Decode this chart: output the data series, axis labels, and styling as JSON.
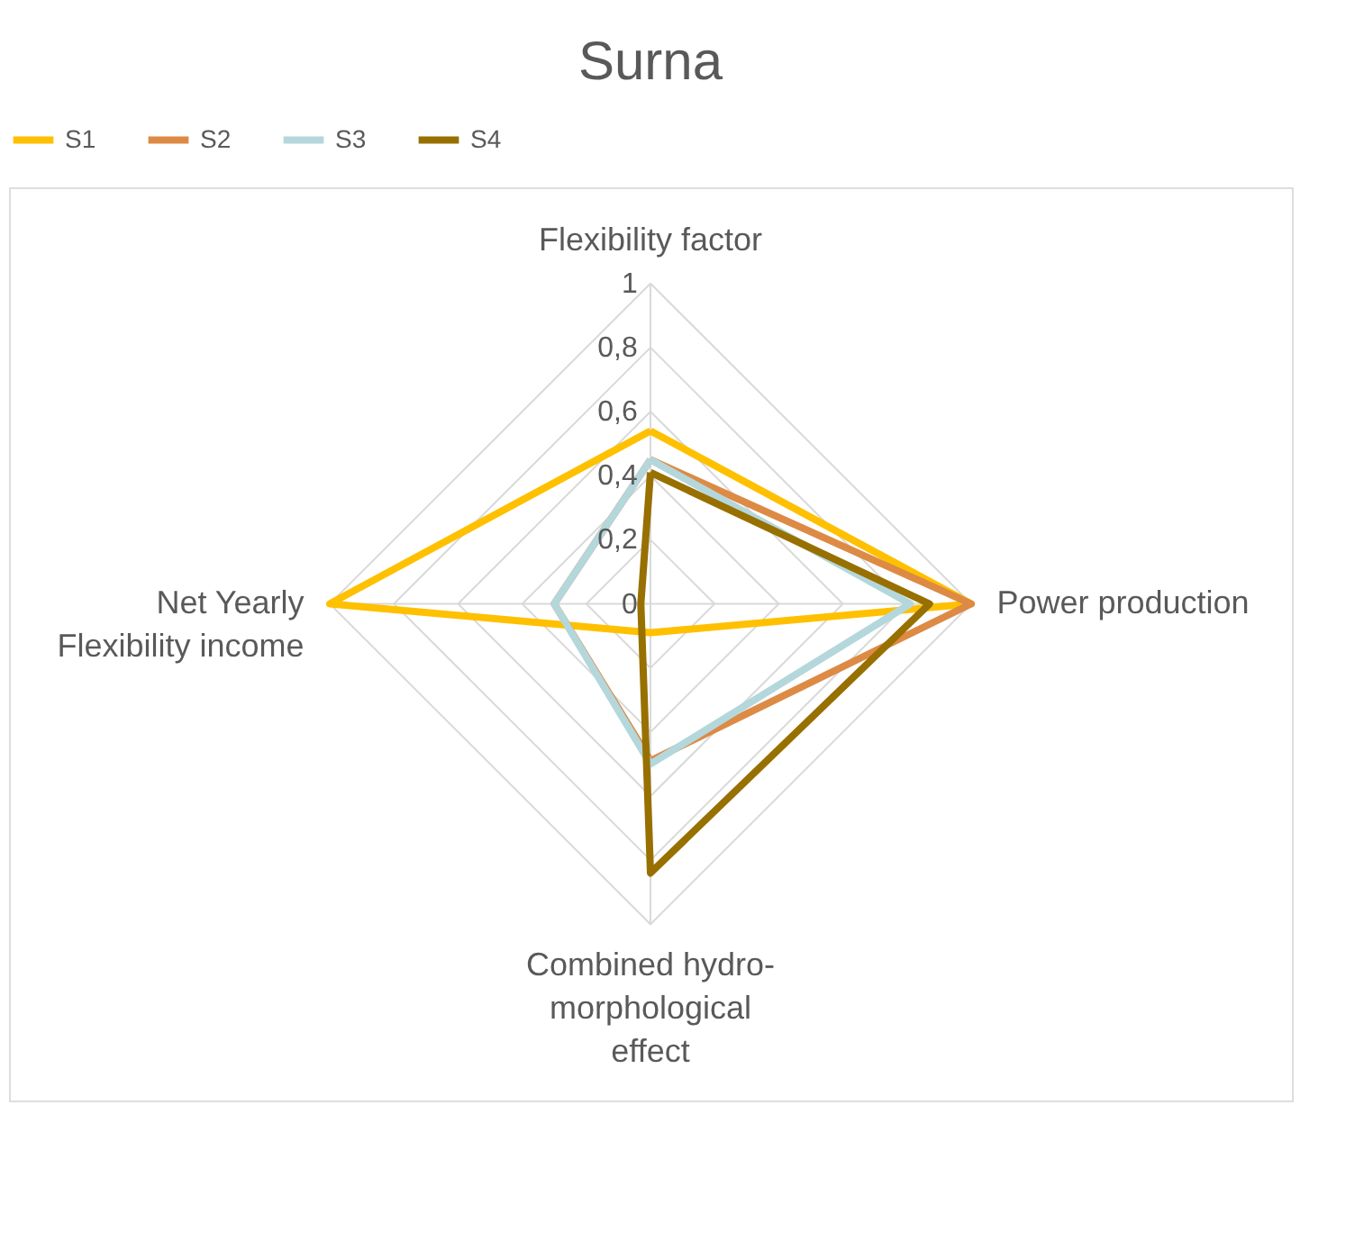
{
  "chart_data": {
    "type": "radar",
    "title": "Surna",
    "categories": [
      "Flexibility factor",
      "Power production",
      "Combined hydro-morphological effect",
      "Net Yearly Flexibility income"
    ],
    "series": [
      {
        "name": "S1",
        "color": "#ffc000",
        "values": [
          0.54,
          1,
          0.09,
          1
        ]
      },
      {
        "name": "S2",
        "color": "#dd8a45",
        "values": [
          0.45,
          1,
          0.49,
          0.3
        ]
      },
      {
        "name": "S3",
        "color": "#b4d7dc",
        "values": [
          0.45,
          0.81,
          0.5,
          0.3
        ]
      },
      {
        "name": "S4",
        "color": "#977000",
        "values": [
          0.41,
          0.87,
          0.84,
          0.03
        ]
      }
    ],
    "ylim": [
      0,
      1
    ],
    "yticks": [
      0,
      {
        "value": 0.2,
        "label": "0,2"
      },
      {
        "value": 0.4,
        "label": "0,4"
      },
      {
        "value": 0.6,
        "label": "0,6"
      },
      {
        "value": 0.8,
        "label": "0,8"
      },
      1
    ],
    "grid": true,
    "legend": "top"
  }
}
